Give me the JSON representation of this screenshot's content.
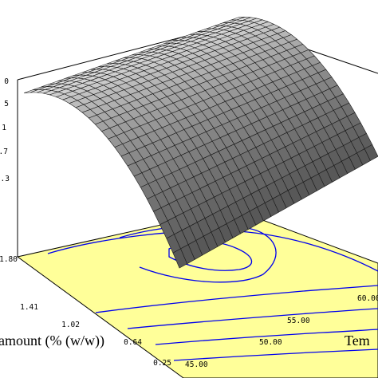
{
  "chart_data": {
    "type": "surface3d",
    "title": "",
    "xlabel": "amount (% (w/w))",
    "ylabel": "Tem",
    "zlabel": "",
    "x_ticks": [
      "0.25",
      "0.64",
      "1.02",
      "1.41",
      "1.80"
    ],
    "y_ticks": [
      "45.00",
      "50.00",
      "55.00",
      "60.00"
    ],
    "z_ticks": [
      ".3",
      ".7",
      "1",
      "5",
      "0"
    ],
    "x_range": [
      0.25,
      1.8
    ],
    "y_range": [
      45,
      65
    ],
    "surface": {
      "description_values": "response peaks near amount 0.9-1.1 and falls off toward the low- and high-amount edges; gently declines toward high temperature",
      "grid": {
        "x": [
          0.25,
          0.64,
          1.02,
          1.41,
          1.8
        ],
        "y": [
          45,
          50,
          55,
          60,
          65
        ]
      },
      "z": [
        [
          0.62,
          0.66,
          0.7,
          0.72,
          0.72
        ],
        [
          0.8,
          0.84,
          0.87,
          0.89,
          0.9
        ],
        [
          0.86,
          0.9,
          0.93,
          0.95,
          0.96
        ],
        [
          0.8,
          0.84,
          0.87,
          0.89,
          0.9
        ],
        [
          0.62,
          0.66,
          0.7,
          0.72,
          0.72
        ]
      ]
    },
    "contour_levels": 7,
    "surface_color": "#8a8a8a",
    "contour_fill": "#ffff99",
    "contour_line": "#0000ee",
    "grid": false
  }
}
